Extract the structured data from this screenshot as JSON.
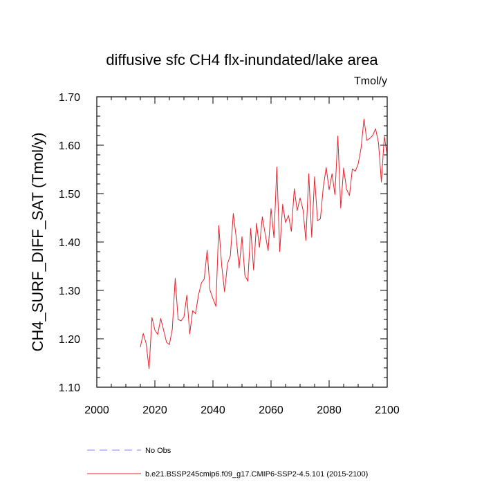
{
  "chart_data": {
    "type": "line",
    "title": "diffusive sfc CH4 flx-inundated/lake area",
    "units": "Tmol/y",
    "xlabel": "",
    "ylabel": "CH4_SURF_DIFF_SAT  (Tmol/y)",
    "xlim": [
      2000,
      2100
    ],
    "ylim": [
      1.1,
      1.7
    ],
    "x_ticks": [
      2000,
      2020,
      2040,
      2060,
      2080,
      2100
    ],
    "x_tick_labels": [
      "2000",
      "2020",
      "2040",
      "2060",
      "2080",
      "2100"
    ],
    "y_ticks": [
      1.1,
      1.2,
      1.3,
      1.4,
      1.5,
      1.6,
      1.7
    ],
    "y_tick_labels": [
      "1.10",
      "1.20",
      "1.30",
      "1.40",
      "1.50",
      "1.60",
      "1.70"
    ],
    "grid": false,
    "legend_position": "bottom",
    "series": [
      {
        "name": "No Obs",
        "color": "#8080ff",
        "style": "dashed",
        "values": []
      },
      {
        "name": "b.e21.BSSP245cmip6.f09_g17.CMIP6-SSP2-4.5.101 (2015-2100)",
        "color": "#e8202a",
        "style": "solid",
        "x": [
          2015,
          2016,
          2017,
          2018,
          2019,
          2020,
          2021,
          2022,
          2023,
          2024,
          2025,
          2026,
          2027,
          2028,
          2029,
          2030,
          2031,
          2032,
          2033,
          2034,
          2035,
          2036,
          2037,
          2038,
          2039,
          2040,
          2041,
          2042,
          2043,
          2044,
          2045,
          2046,
          2047,
          2048,
          2049,
          2050,
          2051,
          2052,
          2053,
          2054,
          2055,
          2056,
          2057,
          2058,
          2059,
          2060,
          2061,
          2062,
          2063,
          2064,
          2065,
          2066,
          2067,
          2068,
          2069,
          2070,
          2071,
          2072,
          2073,
          2074,
          2075,
          2076,
          2077,
          2078,
          2079,
          2080,
          2081,
          2082,
          2083,
          2084,
          2085,
          2086,
          2087,
          2088,
          2089,
          2090,
          2091,
          2092,
          2093,
          2094,
          2095,
          2096,
          2097,
          2098,
          2099,
          2100
        ],
        "values": [
          1.183,
          1.211,
          1.19,
          1.138,
          1.244,
          1.218,
          1.209,
          1.242,
          1.218,
          1.193,
          1.188,
          1.22,
          1.325,
          1.24,
          1.237,
          1.245,
          1.29,
          1.21,
          1.258,
          1.252,
          1.29,
          1.315,
          1.324,
          1.383,
          1.3,
          1.283,
          1.267,
          1.434,
          1.352,
          1.297,
          1.355,
          1.372,
          1.459,
          1.41,
          1.346,
          1.411,
          1.331,
          1.319,
          1.428,
          1.342,
          1.439,
          1.389,
          1.452,
          1.416,
          1.382,
          1.469,
          1.409,
          1.555,
          1.38,
          1.478,
          1.44,
          1.455,
          1.422,
          1.51,
          1.465,
          1.491,
          1.467,
          1.403,
          1.541,
          1.41,
          1.535,
          1.444,
          1.448,
          1.514,
          1.554,
          1.508,
          1.541,
          1.498,
          1.619,
          1.47,
          1.553,
          1.509,
          1.496,
          1.551,
          1.546,
          1.561,
          1.594,
          1.654,
          1.61,
          1.614,
          1.62,
          1.634,
          1.605,
          1.524,
          1.618,
          1.58
        ]
      }
    ]
  }
}
